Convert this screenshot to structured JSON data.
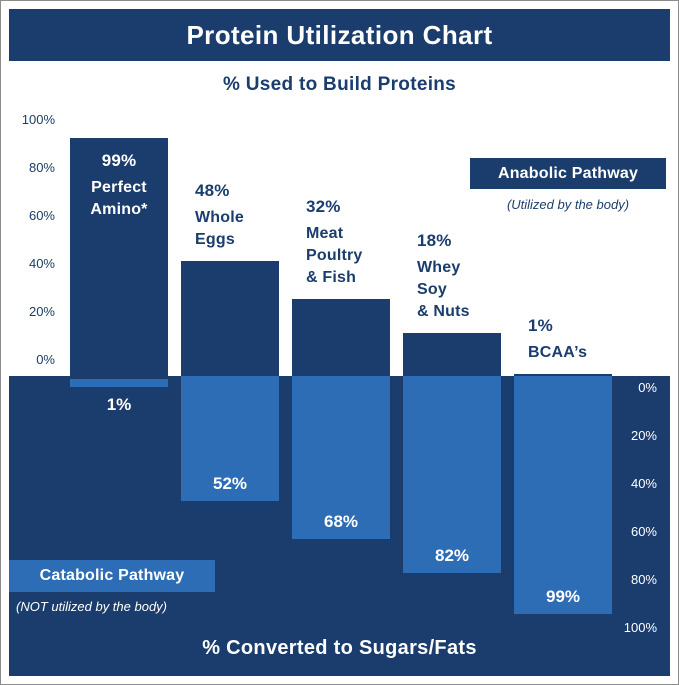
{
  "header": {
    "title": "Protein Utilization Chart"
  },
  "upper_section": {
    "subtitle": "% Used to Build Proteins"
  },
  "lower_section": {
    "subtitle": "% Converted to Sugars/Fats"
  },
  "anabolic_legend": {
    "label": "Anabolic Pathway",
    "note": "(Utilized by the body)"
  },
  "catabolic_legend": {
    "label": "Catabolic Pathway",
    "note": "(NOT utilized by the body)"
  },
  "colors": {
    "navy": "#1b3d6d",
    "light_blue": "#2d6db5",
    "white": "#ffffff"
  },
  "chart_data": {
    "type": "bar",
    "title": "Protein Utilization Chart",
    "upper_axis_label": "% Used to Build Proteins",
    "lower_axis_label": "% Converted to Sugars/Fats",
    "categories": [
      "Perfect Amino*",
      "Whole Eggs",
      "Meat Poultry & Fish",
      "Whey Soy & Nuts",
      "BCAA's"
    ],
    "series": [
      {
        "name": "Anabolic Pathway (Utilized by the body)",
        "values": [
          99,
          48,
          32,
          18,
          1
        ]
      },
      {
        "name": "Catabolic Pathway (NOT utilized by the body)",
        "values": [
          1,
          52,
          68,
          82,
          99
        ]
      }
    ],
    "bars": [
      {
        "name_lines": [
          "Perfect",
          "Amino*"
        ],
        "pct_up": "99%",
        "anabolic": 99,
        "pct_down": "1%",
        "catabolic": 1,
        "label_inside": true
      },
      {
        "name_lines": [
          "Whole",
          "Eggs"
        ],
        "pct_up": "48%",
        "anabolic": 48,
        "pct_down": "52%",
        "catabolic": 52
      },
      {
        "name_lines": [
          "Meat",
          "Poultry",
          "& Fish"
        ],
        "pct_up": "32%",
        "anabolic": 32,
        "pct_down": "68%",
        "catabolic": 68
      },
      {
        "name_lines": [
          "Whey",
          "Soy",
          "& Nuts"
        ],
        "pct_up": "18%",
        "anabolic": 18,
        "pct_down": "82%",
        "catabolic": 82
      },
      {
        "name_lines": [
          "BCAA’s"
        ],
        "pct_up": "1%",
        "anabolic": 1,
        "pct_down": "99%",
        "catabolic": 99
      }
    ],
    "upper_ticks": [
      0,
      20,
      40,
      60,
      80,
      100
    ],
    "lower_ticks": [
      0,
      20,
      40,
      60,
      80,
      100
    ],
    "ylim_upper": [
      0,
      100
    ],
    "ylim_lower": [
      0,
      100
    ],
    "grid": false,
    "legend_position": {
      "anabolic": "upper-right",
      "catabolic": "lower-left"
    }
  }
}
